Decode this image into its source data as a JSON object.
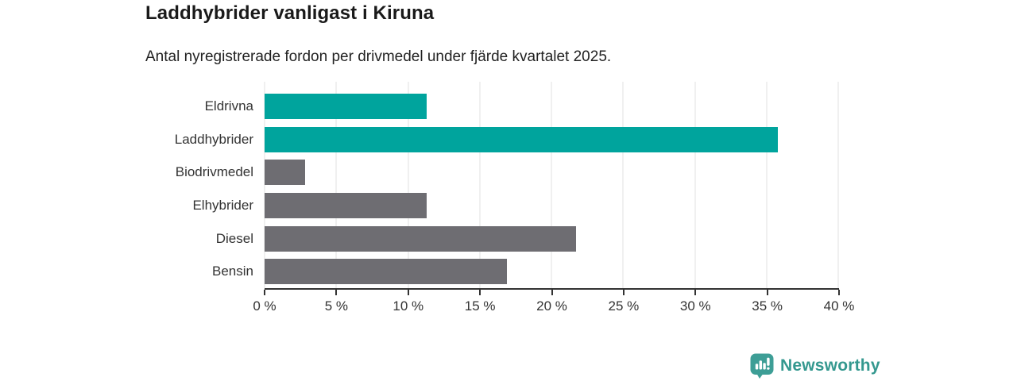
{
  "header": {
    "title": "Laddhybrider vanligast i Kiruna",
    "subtitle": "Antal nyregistrerade fordon per drivmedel under fjärde kvartalet 2025."
  },
  "chart_data": {
    "type": "bar",
    "orientation": "horizontal",
    "title": "Laddhybrider vanligast i Kiruna",
    "subtitle": "Antal nyregistrerade fordon per drivmedel under fjärde kvartalet 2025.",
    "categories": [
      "Eldrivna",
      "Laddhybrider",
      "Biodrivmedel",
      "Elhybrider",
      "Diesel",
      "Bensin"
    ],
    "values": [
      11.3,
      35.8,
      2.8,
      11.3,
      21.7,
      16.9
    ],
    "bar_colors": [
      "#00a49d",
      "#00a49d",
      "#6e6d72",
      "#6e6d72",
      "#6e6d72",
      "#6e6d72"
    ],
    "highlight_color": "#00a49d",
    "default_color": "#6e6d72",
    "xlabel": "",
    "ylabel": "",
    "xlim": [
      0,
      40
    ],
    "x_ticks": [
      0,
      5,
      10,
      15,
      20,
      25,
      30,
      35,
      40
    ],
    "x_tick_labels": [
      "0 %",
      "5 %",
      "10 %",
      "15 %",
      "20 %",
      "25 %",
      "30 %",
      "35 %",
      "40 %"
    ],
    "grid": "vertical-only",
    "gridline_color": "#e1e1e1",
    "legend": "none"
  },
  "footer": {
    "brand": "Newsworthy",
    "brand_color": "#34988f",
    "icon": "newsworthy-badge-bar-chart-icon",
    "icon_color": "#3d9e96"
  }
}
